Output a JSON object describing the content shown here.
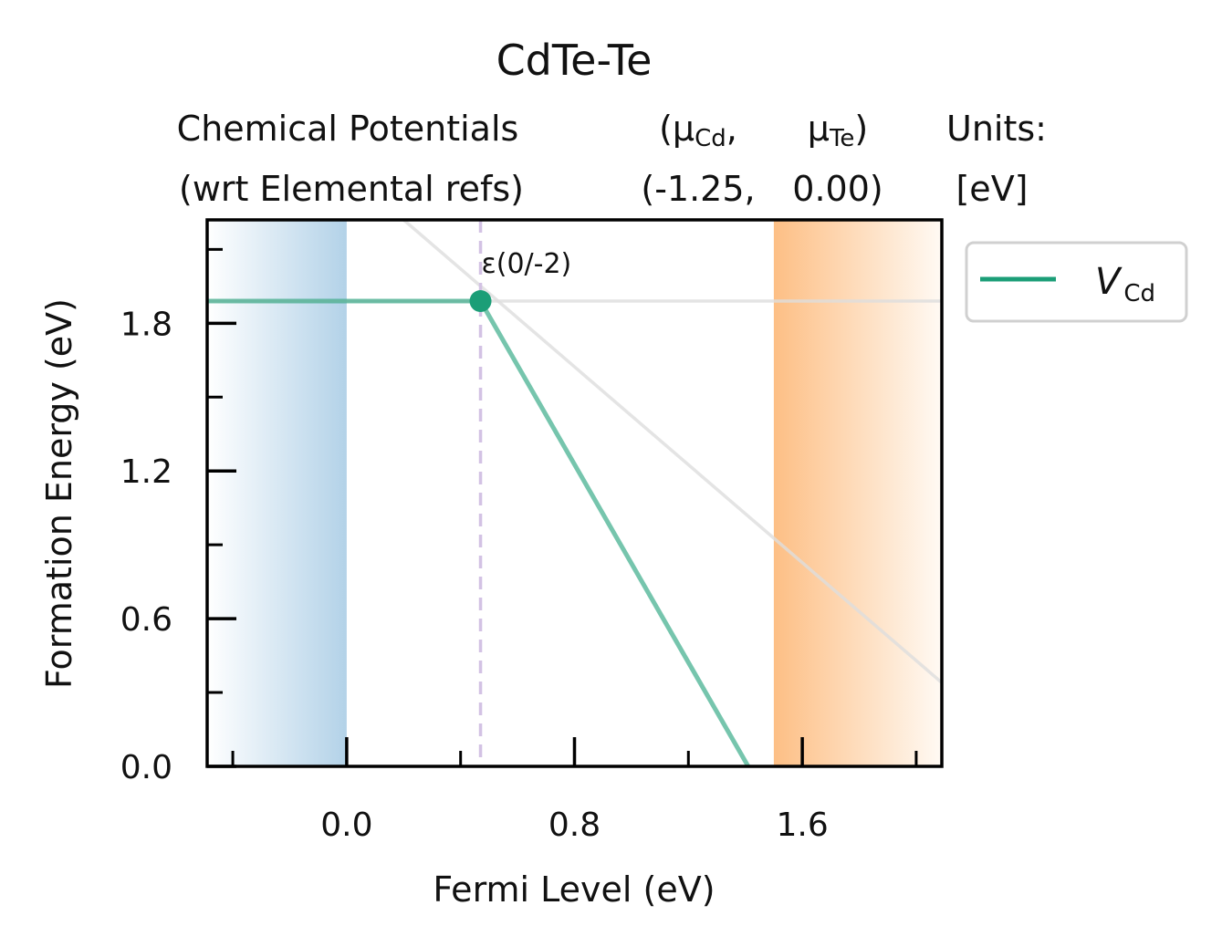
{
  "chart_data": {
    "type": "line",
    "title": "CdTe-Te",
    "subtitle": {
      "line1": {
        "left": "Chemical Potentials",
        "mid1": "(μ",
        "mid1_sub": "Cd",
        "mid1_end": ",",
        "mid2": "μ",
        "mid2_sub": "Te",
        "mid2_end": ")",
        "right": "Units:"
      },
      "line2": {
        "left": "(wrt Elemental refs)",
        "mid1": "(-1.25,",
        "mid2": "0.00)",
        "right": "[eV]"
      }
    },
    "xlabel": "Fermi Level (eV)",
    "ylabel": "Formation Energy (eV)",
    "xlim": [
      -0.49,
      2.09
    ],
    "ylim": [
      0.0,
      2.22
    ],
    "xticks": [
      0.0,
      0.8,
      1.6
    ],
    "xtick_labels": [
      "0.0",
      "0.8",
      "1.6"
    ],
    "xminor": [
      -0.4,
      0.4,
      1.2,
      2.0
    ],
    "yticks": [
      0.0,
      0.6,
      1.2,
      1.8
    ],
    "ytick_labels": [
      "0.0",
      "0.6",
      "1.2",
      "1.8"
    ],
    "yminor": [
      0.3,
      0.9,
      1.5,
      2.1
    ],
    "vbm": 0.0,
    "cbm": 1.5,
    "vbm_color": "#b3d2e8",
    "cbm_color": "#fdbf85",
    "series": [
      {
        "name": "V",
        "name_sub": "Cd",
        "color": "#1b9e77",
        "alpha": 0.6,
        "x": [
          -0.49,
          0.47,
          1.41
        ],
        "y": [
          1.89,
          1.89,
          0.0
        ]
      }
    ],
    "background_lines": [
      {
        "color": "#dddddd",
        "x": [
          -0.49,
          2.09
        ],
        "y": [
          1.89,
          1.89
        ]
      },
      {
        "color": "#dddddd",
        "x": [
          0.2,
          2.09
        ],
        "y": [
          2.22,
          0.34
        ]
      }
    ],
    "transition": {
      "label": "ε(0/-2)",
      "x": 0.47,
      "y": 1.89,
      "line_color": "#d3c2e4",
      "marker_color": "#1b9e77"
    },
    "legend": {
      "placement": "outside-right"
    }
  }
}
